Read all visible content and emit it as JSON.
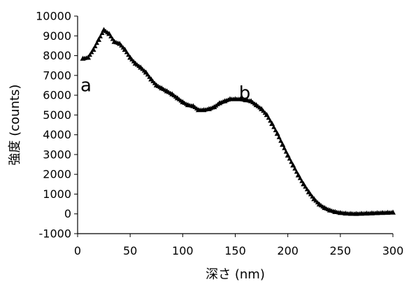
{
  "chart_data": {
    "type": "scatter",
    "title": "",
    "xlabel": "深さ (nm)",
    "ylabel": "強度 (counts)",
    "xlim": [
      0,
      300
    ],
    "ylim": [
      -1000,
      10000
    ],
    "xticks": [
      0,
      50,
      100,
      150,
      200,
      250,
      300
    ],
    "yticks": [
      -1000,
      0,
      1000,
      2000,
      3000,
      4000,
      5000,
      6000,
      7000,
      8000,
      9000,
      10000
    ],
    "grid": false,
    "legend": "none",
    "marker": "triangle",
    "color": "#000000",
    "annotations": [
      {
        "text": "a",
        "x": 8,
        "y": 6700
      },
      {
        "text": "b",
        "x": 159,
        "y": 6300
      }
    ],
    "series": [
      {
        "x": [
          5,
          10,
          15,
          20,
          25,
          30,
          35,
          40,
          45,
          50,
          55,
          60,
          65,
          70,
          75,
          80,
          85,
          90,
          95,
          100,
          105,
          110,
          115,
          120,
          125,
          130,
          135,
          140,
          145,
          150,
          155,
          160,
          165,
          170,
          175,
          180,
          185,
          190,
          195,
          200,
          205,
          210,
          215,
          220,
          225,
          230,
          235,
          240,
          245,
          250,
          255,
          260,
          265,
          270,
          275,
          280,
          285,
          290,
          295,
          300
        ],
        "y": [
          7850,
          7900,
          8300,
          8800,
          9300,
          9100,
          8700,
          8600,
          8300,
          7900,
          7600,
          7400,
          7150,
          6800,
          6500,
          6350,
          6200,
          6050,
          5850,
          5650,
          5500,
          5450,
          5250,
          5250,
          5300,
          5400,
          5600,
          5700,
          5800,
          5800,
          5800,
          5750,
          5700,
          5500,
          5300,
          5000,
          4550,
          4050,
          3500,
          2950,
          2450,
          1950,
          1500,
          1100,
          750,
          480,
          300,
          180,
          100,
          50,
          20,
          5,
          0,
          10,
          20,
          30,
          40,
          50,
          60,
          70
        ]
      }
    ]
  }
}
